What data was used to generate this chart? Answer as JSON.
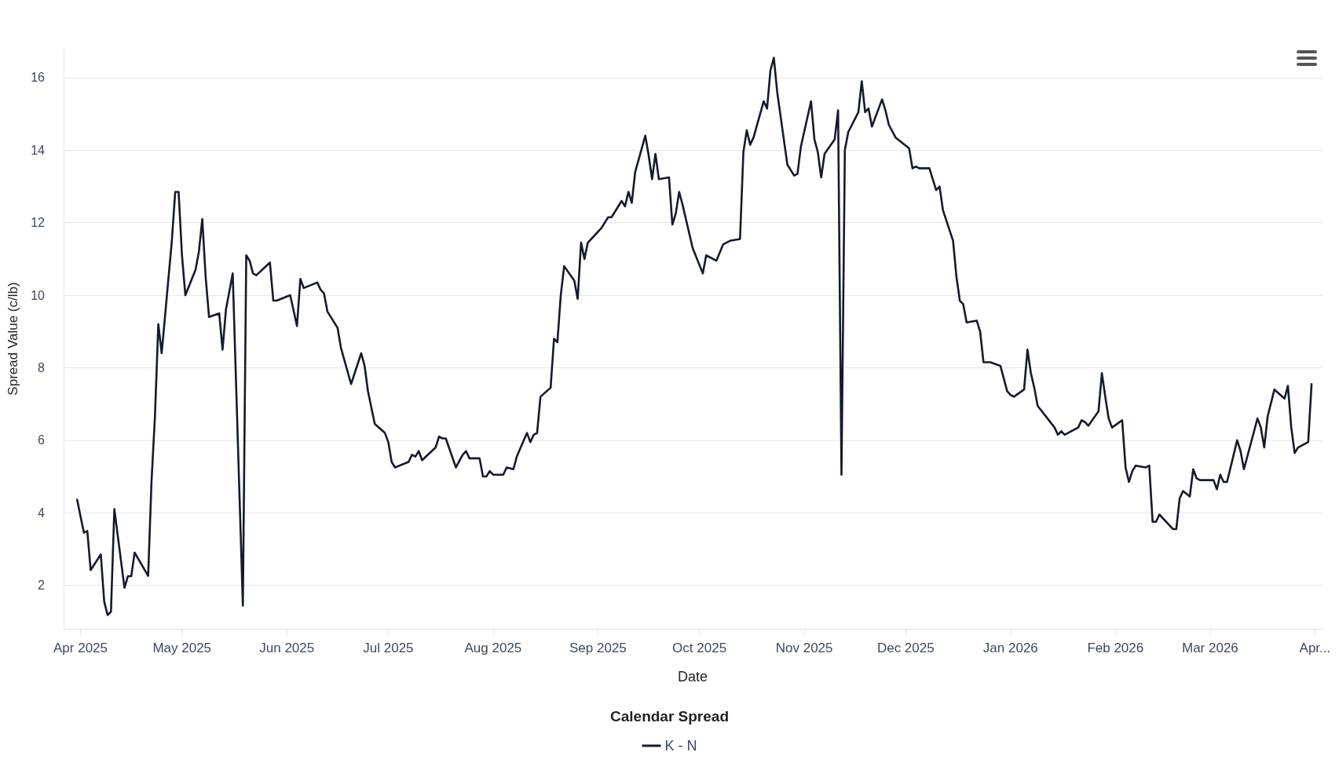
{
  "chart_data": {
    "type": "line",
    "xlabel": "Date",
    "ylabel": "Spread Value (c/lb)",
    "legend_title": "Calendar Spread",
    "legend": "bottom",
    "grid": "y",
    "marker": "none",
    "line_style": "solid",
    "xlim": [
      "2025-03-27",
      "2026-04-03"
    ],
    "xticks": [
      {
        "value": "2025-04-01",
        "label": "Apr 2025"
      },
      {
        "value": "2025-05-01",
        "label": "May 2025"
      },
      {
        "value": "2025-06-01",
        "label": "Jun 2025"
      },
      {
        "value": "2025-07-01",
        "label": "Jul 2025"
      },
      {
        "value": "2025-08-01",
        "label": "Aug 2025"
      },
      {
        "value": "2025-09-01",
        "label": "Sep 2025"
      },
      {
        "value": "2025-10-01",
        "label": "Oct 2025"
      },
      {
        "value": "2025-11-01",
        "label": "Nov 2025"
      },
      {
        "value": "2025-12-01",
        "label": "Dec 2025"
      },
      {
        "value": "2026-01-01",
        "label": "Jan 2026"
      },
      {
        "value": "2026-02-01",
        "label": "Feb 2026"
      },
      {
        "value": "2026-03-01",
        "label": "Mar 2026"
      },
      {
        "value": "2026-04-01",
        "label": "Apr..."
      }
    ],
    "ylim": [
      0.8,
      16.8
    ],
    "yticks": [
      2,
      4,
      6,
      8,
      10,
      12,
      14,
      16
    ],
    "x": [
      "2025-03-31",
      "2025-04-01",
      "2025-04-02",
      "2025-04-03",
      "2025-04-04",
      "2025-04-07",
      "2025-04-08",
      "2025-04-09",
      "2025-04-10",
      "2025-04-11",
      "2025-04-14",
      "2025-04-15",
      "2025-04-16",
      "2025-04-17",
      "2025-04-21",
      "2025-04-22",
      "2025-04-23",
      "2025-04-24",
      "2025-04-25",
      "2025-04-28",
      "2025-04-29",
      "2025-04-30",
      "2025-05-01",
      "2025-05-02",
      "2025-05-05",
      "2025-05-06",
      "2025-05-07",
      "2025-05-08",
      "2025-05-09",
      "2025-05-12",
      "2025-05-13",
      "2025-05-14",
      "2025-05-16",
      "2025-05-19",
      "2025-05-20",
      "2025-05-21",
      "2025-05-22",
      "2025-05-23",
      "2025-05-27",
      "2025-05-28",
      "2025-05-29",
      "2025-06-02",
      "2025-06-04",
      "2025-06-05",
      "2025-06-06",
      "2025-06-10",
      "2025-06-11",
      "2025-06-12",
      "2025-06-13",
      "2025-06-16",
      "2025-06-17",
      "2025-06-20",
      "2025-06-23",
      "2025-06-24",
      "2025-06-25",
      "2025-06-27",
      "2025-06-30",
      "2025-07-01",
      "2025-07-02",
      "2025-07-03",
      "2025-07-07",
      "2025-07-08",
      "2025-07-09",
      "2025-07-10",
      "2025-07-11",
      "2025-07-15",
      "2025-07-16",
      "2025-07-17",
      "2025-07-18",
      "2025-07-21",
      "2025-07-23",
      "2025-07-24",
      "2025-07-25",
      "2025-07-28",
      "2025-07-29",
      "2025-07-30",
      "2025-07-31",
      "2025-08-01",
      "2025-08-04",
      "2025-08-05",
      "2025-08-07",
      "2025-08-08",
      "2025-08-11",
      "2025-08-12",
      "2025-08-13",
      "2025-08-14",
      "2025-08-15",
      "2025-08-18",
      "2025-08-19",
      "2025-08-20",
      "2025-08-21",
      "2025-08-22",
      "2025-08-25",
      "2025-08-26",
      "2025-08-27",
      "2025-08-28",
      "2025-08-29",
      "2025-09-02",
      "2025-09-04",
      "2025-09-05",
      "2025-09-08",
      "2025-09-09",
      "2025-09-10",
      "2025-09-11",
      "2025-09-12",
      "2025-09-15",
      "2025-09-16",
      "2025-09-17",
      "2025-09-18",
      "2025-09-19",
      "2025-09-22",
      "2025-09-23",
      "2025-09-24",
      "2025-09-25",
      "2025-09-26",
      "2025-09-29",
      "2025-10-02",
      "2025-10-03",
      "2025-10-06",
      "2025-10-08",
      "2025-10-10",
      "2025-10-13",
      "2025-10-14",
      "2025-10-15",
      "2025-10-16",
      "2025-10-17",
      "2025-10-20",
      "2025-10-21",
      "2025-10-22",
      "2025-10-23",
      "2025-10-24",
      "2025-10-27",
      "2025-10-29",
      "2025-10-30",
      "2025-10-31",
      "2025-11-03",
      "2025-11-04",
      "2025-11-05",
      "2025-11-06",
      "2025-11-07",
      "2025-11-10",
      "2025-11-11",
      "2025-11-12",
      "2025-11-13",
      "2025-11-14",
      "2025-11-17",
      "2025-11-18",
      "2025-11-19",
      "2025-11-20",
      "2025-11-21",
      "2025-11-24",
      "2025-11-25",
      "2025-11-26",
      "2025-11-28",
      "2025-12-02",
      "2025-12-03",
      "2025-12-04",
      "2025-12-05",
      "2025-12-08",
      "2025-12-09",
      "2025-12-10",
      "2025-12-11",
      "2025-12-12",
      "2025-12-15",
      "2025-12-16",
      "2025-12-17",
      "2025-12-18",
      "2025-12-19",
      "2025-12-22",
      "2025-12-23",
      "2025-12-24",
      "2025-12-26",
      "2025-12-29",
      "2025-12-30",
      "2025-12-31",
      "2026-01-01",
      "2026-01-02",
      "2026-01-05",
      "2026-01-06",
      "2026-01-07",
      "2026-01-08",
      "2026-01-09",
      "2026-01-14",
      "2026-01-15",
      "2026-01-16",
      "2026-01-17",
      "2026-01-20",
      "2026-01-21",
      "2026-01-22",
      "2026-01-23",
      "2026-01-24",
      "2026-01-27",
      "2026-01-28",
      "2026-01-29",
      "2026-01-30",
      "2026-01-31",
      "2026-02-03",
      "2026-02-04",
      "2026-02-05",
      "2026-02-06",
      "2026-02-07",
      "2026-02-10",
      "2026-02-11",
      "2026-02-12",
      "2026-02-13",
      "2026-02-14",
      "2026-02-18",
      "2026-02-19",
      "2026-02-20",
      "2026-02-21",
      "2026-02-23",
      "2026-02-24",
      "2026-02-25",
      "2026-02-26",
      "2026-03-02",
      "2026-03-03",
      "2026-03-04",
      "2026-03-05",
      "2026-03-06",
      "2026-03-09",
      "2026-03-10",
      "2026-03-11",
      "2026-03-15",
      "2026-03-16",
      "2026-03-17",
      "2026-03-18",
      "2026-03-20",
      "2026-03-23",
      "2026-03-24",
      "2026-03-25",
      "2026-03-26",
      "2026-03-27",
      "2026-03-30",
      "2026-03-31"
    ],
    "series": [
      {
        "name": "K - N",
        "color": "#141b2d",
        "values": [
          4.36,
          3.9,
          3.45,
          3.5,
          2.42,
          2.85,
          1.55,
          1.18,
          1.27,
          4.1,
          1.93,
          2.25,
          2.25,
          2.9,
          2.26,
          4.88,
          6.64,
          9.2,
          8.4,
          11.5,
          12.85,
          12.85,
          11.1,
          10.0,
          10.7,
          11.2,
          12.1,
          10.5,
          9.4,
          9.5,
          8.5,
          9.6,
          10.6,
          1.44,
          11.1,
          10.95,
          10.6,
          10.55,
          10.9,
          9.85,
          9.85,
          10.0,
          9.15,
          10.45,
          10.2,
          10.35,
          10.15,
          10.05,
          9.55,
          9.1,
          8.55,
          7.55,
          8.4,
          8.05,
          7.35,
          6.45,
          6.2,
          5.95,
          5.4,
          5.25,
          5.4,
          5.6,
          5.55,
          5.7,
          5.45,
          5.8,
          6.1,
          6.05,
          6.05,
          5.25,
          5.6,
          5.7,
          5.5,
          5.5,
          5.0,
          5.0,
          5.15,
          5.05,
          5.05,
          5.25,
          5.2,
          5.55,
          6.2,
          5.95,
          6.15,
          6.2,
          7.2,
          7.45,
          8.8,
          8.7,
          10.0,
          10.8,
          10.4,
          9.9,
          11.45,
          11.0,
          11.45,
          11.85,
          12.15,
          12.15,
          12.6,
          12.45,
          12.85,
          12.55,
          13.4,
          14.4,
          13.85,
          13.2,
          13.9,
          13.2,
          13.25,
          11.95,
          12.25,
          12.85,
          12.5,
          11.3,
          10.6,
          11.1,
          10.95,
          11.4,
          11.5,
          11.55,
          13.95,
          14.55,
          14.15,
          14.35,
          15.35,
          15.15,
          16.2,
          16.55,
          15.6,
          13.6,
          13.3,
          13.35,
          14.1,
          15.35,
          14.3,
          13.95,
          13.25,
          13.9,
          14.3,
          15.1,
          5.05,
          14.0,
          14.5,
          15.05,
          15.9,
          15.05,
          15.15,
          14.65,
          15.4,
          15.1,
          14.7,
          14.35,
          14.05,
          13.5,
          13.55,
          13.5,
          13.5,
          13.2,
          12.9,
          13.0,
          12.35,
          11.5,
          10.5,
          9.85,
          9.75,
          9.25,
          9.3,
          9.0,
          8.15,
          8.15,
          8.05,
          7.7,
          7.35,
          7.25,
          7.2,
          7.4,
          8.5,
          7.85,
          7.45,
          6.95,
          6.35,
          6.15,
          6.25,
          6.15,
          6.3,
          6.35,
          6.55,
          6.5,
          6.4,
          6.8,
          7.85,
          7.2,
          6.6,
          6.35,
          6.55,
          5.25,
          4.85,
          5.15,
          5.3,
          5.25,
          5.3,
          3.75,
          3.75,
          3.95,
          3.55,
          3.55,
          4.4,
          4.6,
          4.45,
          5.2,
          4.95,
          4.9,
          4.9,
          4.65,
          5.05,
          4.85,
          4.85,
          6.0,
          5.7,
          5.2,
          6.6,
          6.35,
          5.8,
          6.65,
          7.4,
          7.15,
          7.5,
          6.35,
          5.65,
          5.8,
          5.95,
          7.55
        ]
      }
    ]
  }
}
